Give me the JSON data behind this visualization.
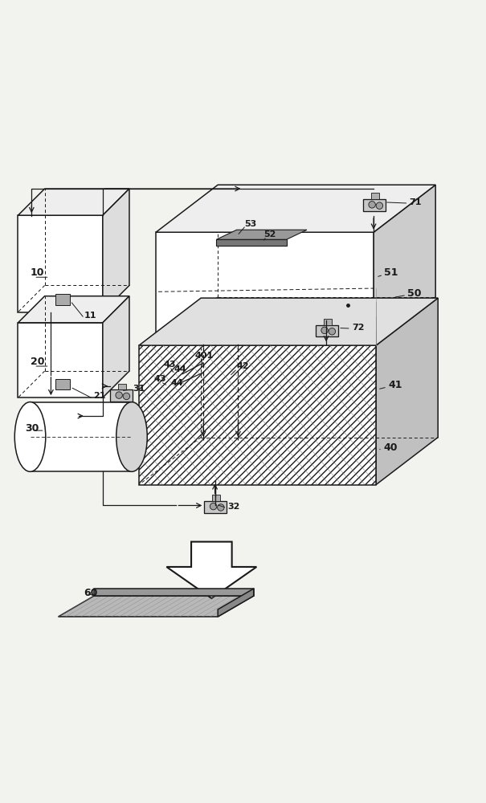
{
  "bg_color": "#f2f2ee",
  "line_color": "#1a1a1a",
  "lw": 1.1
}
